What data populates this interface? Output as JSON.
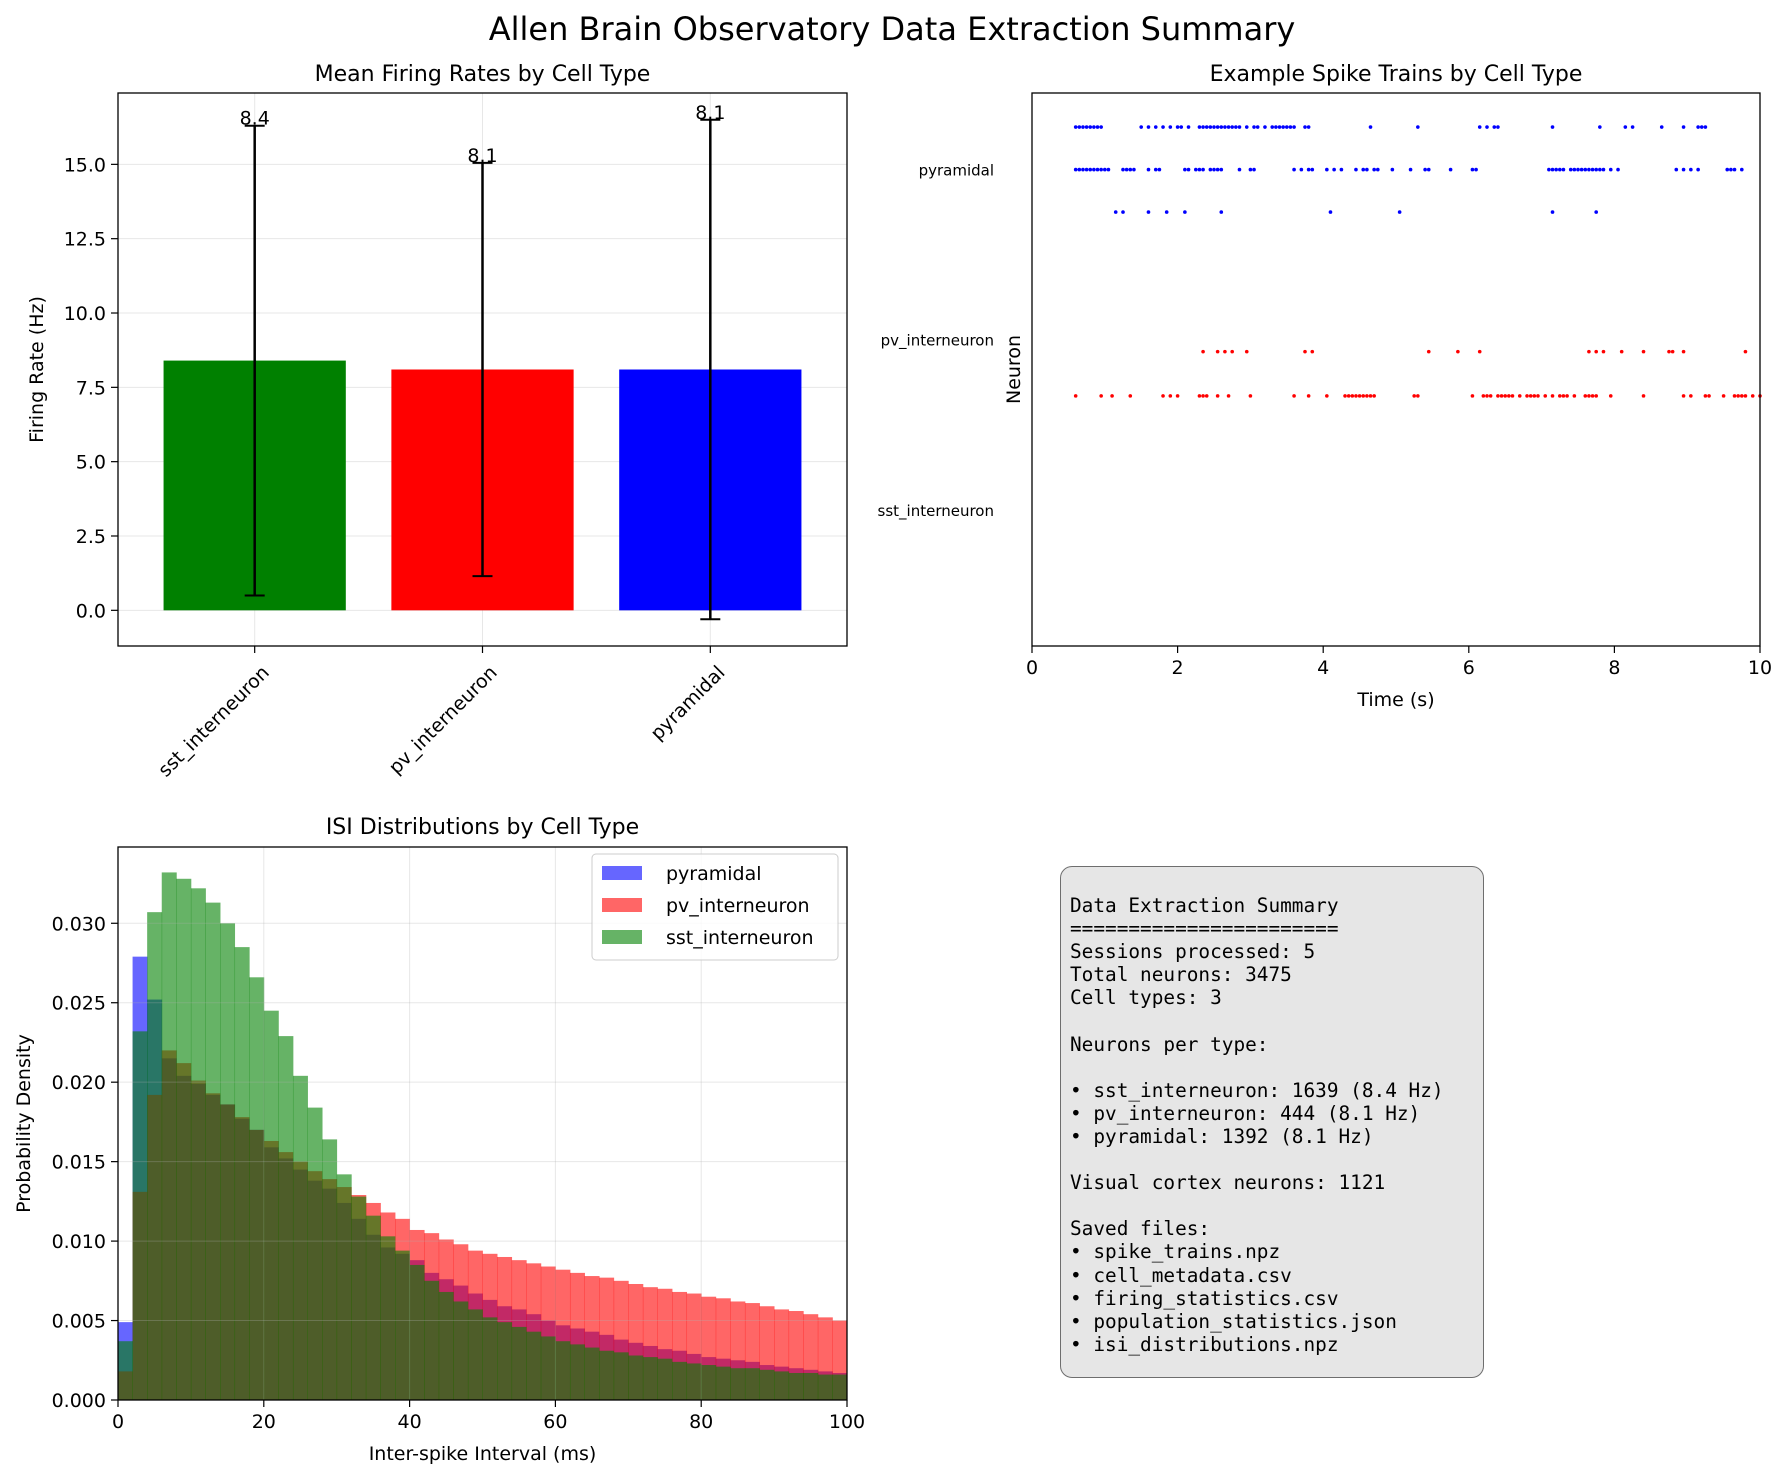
{
  "figure": {
    "title": "Allen Brain Observatory Data Extraction Summary"
  },
  "chart_data": [
    {
      "id": "firing_rates",
      "type": "bar",
      "title": "Mean Firing Rates by Cell Type",
      "xlabel": "",
      "ylabel": "Firing Rate (Hz)",
      "categories": [
        "sst_interneuron",
        "pv_interneuron",
        "pyramidal"
      ],
      "values": [
        8.4,
        8.1,
        8.1
      ],
      "errors": [
        7.9,
        6.95,
        8.4
      ],
      "value_labels": [
        "8.4",
        "8.1",
        "8.1"
      ],
      "colors": [
        "#008000",
        "#ff0000",
        "#0000ff"
      ],
      "ylim": [
        -1.2,
        17.4
      ],
      "yticks": [
        0.0,
        2.5,
        5.0,
        7.5,
        10.0,
        12.5,
        15.0
      ],
      "ytick_labels": [
        "0.0",
        "2.5",
        "5.0",
        "7.5",
        "10.0",
        "12.5",
        "15.0"
      ],
      "grid": true
    },
    {
      "id": "spike_trains",
      "type": "scatter",
      "title": "Example Spike Trains by Cell Type",
      "xlabel": "Time (s)",
      "ylabel": "Neuron",
      "xlim": [
        0,
        10
      ],
      "ylim": [
        -0.8,
        2.45
      ],
      "xticks": [
        0,
        2,
        4,
        6,
        8,
        10
      ],
      "xtick_labels": [
        "0",
        "2",
        "4",
        "6",
        "8",
        "10"
      ],
      "yticks": [
        0,
        1,
        2
      ],
      "ytick_labels": [
        "sst_interneuron",
        "pv_interneuron",
        "pyramidal"
      ],
      "grid": false,
      "trains": [
        {
          "group": "pyramidal",
          "y": 2.25,
          "color": "#0000ff",
          "times": [
            0.6,
            0.65,
            0.7,
            0.75,
            0.8,
            0.85,
            0.9,
            0.95,
            1.5,
            1.6,
            1.7,
            1.8,
            1.9,
            2.0,
            2.05,
            2.15,
            2.3,
            2.35,
            2.4,
            2.45,
            2.5,
            2.55,
            2.6,
            2.65,
            2.7,
            2.75,
            2.8,
            2.85,
            2.95,
            3.05,
            3.1,
            3.2,
            3.3,
            3.35,
            3.4,
            3.45,
            3.5,
            3.55,
            3.6,
            3.75,
            3.8,
            4.65,
            5.3,
            6.15,
            6.25,
            6.35,
            6.4,
            7.15,
            7.8,
            8.15,
            8.25,
            8.65,
            8.95,
            9.15,
            9.2,
            9.25
          ]
        },
        {
          "group": "pyramidal",
          "y": 2.0,
          "color": "#0000ff",
          "times": [
            0.6,
            0.65,
            0.7,
            0.75,
            0.8,
            0.85,
            0.9,
            0.95,
            1.0,
            1.05,
            1.25,
            1.3,
            1.35,
            1.4,
            1.6,
            1.7,
            1.75,
            2.1,
            2.15,
            2.25,
            2.3,
            2.35,
            2.45,
            2.5,
            2.55,
            2.6,
            2.85,
            3.0,
            3.05,
            3.6,
            3.7,
            3.8,
            3.85,
            4.05,
            4.15,
            4.25,
            4.45,
            4.55,
            4.6,
            4.7,
            4.75,
            4.95,
            5.2,
            5.4,
            5.45,
            5.75,
            6.05,
            6.1,
            7.1,
            7.15,
            7.2,
            7.25,
            7.3,
            7.4,
            7.45,
            7.5,
            7.55,
            7.6,
            7.65,
            7.7,
            7.75,
            7.8,
            7.85,
            7.95,
            8.05,
            8.85,
            8.95,
            9.05,
            9.15,
            9.55,
            9.6,
            9.65,
            9.75
          ]
        },
        {
          "group": "pyramidal",
          "y": 1.75,
          "color": "#0000ff",
          "times": [
            1.15,
            1.25,
            1.6,
            1.85,
            2.1,
            2.6,
            4.1,
            5.05,
            7.15,
            7.75
          ]
        },
        {
          "group": "pv_interneuron",
          "y": 0.93,
          "color": "#ff0000",
          "times": [
            2.35,
            2.55,
            2.65,
            2.75,
            2.95,
            3.75,
            3.85,
            5.45,
            5.85,
            6.15,
            7.65,
            7.75,
            7.85,
            8.1,
            8.4,
            8.75,
            8.8,
            8.95,
            9.8
          ]
        },
        {
          "group": "pv_interneuron",
          "y": 0.67,
          "color": "#ff0000",
          "times": [
            0.6,
            0.95,
            1.1,
            1.35,
            1.8,
            1.9,
            2.0,
            2.3,
            2.35,
            2.4,
            2.55,
            2.7,
            3.0,
            3.6,
            3.8,
            4.05,
            4.3,
            4.35,
            4.4,
            4.45,
            4.5,
            4.55,
            4.6,
            4.65,
            4.7,
            5.25,
            5.3,
            6.05,
            6.2,
            6.25,
            6.3,
            6.4,
            6.45,
            6.5,
            6.55,
            6.6,
            6.7,
            6.8,
            6.85,
            6.9,
            6.95,
            7.05,
            7.15,
            7.25,
            7.3,
            7.35,
            7.45,
            7.6,
            7.65,
            7.7,
            7.75,
            7.95,
            8.4,
            8.95,
            9.05,
            9.25,
            9.3,
            9.5,
            9.65,
            9.7,
            9.75,
            9.8,
            9.9,
            10.0
          ]
        }
      ]
    },
    {
      "id": "isi",
      "type": "bar",
      "subtype": "histogram",
      "title": "ISI Distributions by Cell Type",
      "xlabel": "Inter-spike Interval (ms)",
      "ylabel": "Probability Density",
      "xlim": [
        0,
        100
      ],
      "ylim": [
        0,
        0.0348
      ],
      "bin_width": 2,
      "xticks": [
        0,
        20,
        40,
        60,
        80,
        100
      ],
      "xtick_labels": [
        "0",
        "20",
        "40",
        "60",
        "80",
        "100"
      ],
      "yticks": [
        0.0,
        0.005,
        0.01,
        0.015,
        0.02,
        0.025,
        0.03
      ],
      "ytick_labels": [
        "0.000",
        "0.005",
        "0.010",
        "0.015",
        "0.020",
        "0.025",
        "0.030"
      ],
      "legend_position": "upper-right",
      "grid": true,
      "series": [
        {
          "name": "pyramidal",
          "color": "#0000ff",
          "values": [
            0.0049,
            0.0279,
            0.0252,
            0.0215,
            0.0204,
            0.0199,
            0.0192,
            0.0186,
            0.0177,
            0.017,
            0.0159,
            0.0152,
            0.0145,
            0.0138,
            0.0133,
            0.0124,
            0.0114,
            0.0104,
            0.0096,
            0.0092,
            0.0088,
            0.008,
            0.0076,
            0.0072,
            0.0067,
            0.0063,
            0.0059,
            0.0057,
            0.0054,
            0.005,
            0.0047,
            0.0045,
            0.0043,
            0.0041,
            0.0038,
            0.0036,
            0.0034,
            0.0032,
            0.0031,
            0.0029,
            0.0027,
            0.0026,
            0.0025,
            0.0024,
            0.0022,
            0.0021,
            0.002,
            0.0019,
            0.0018,
            0.0017
          ]
        },
        {
          "name": "pv_interneuron",
          "color": "#ff0000",
          "values": [
            0.0018,
            0.0131,
            0.0192,
            0.022,
            0.0212,
            0.0201,
            0.0193,
            0.0186,
            0.0178,
            0.017,
            0.0163,
            0.0156,
            0.015,
            0.0144,
            0.0139,
            0.0134,
            0.0129,
            0.0124,
            0.0118,
            0.0114,
            0.0107,
            0.0105,
            0.0101,
            0.0098,
            0.0094,
            0.0092,
            0.009,
            0.0088,
            0.0086,
            0.0084,
            0.0082,
            0.008,
            0.0078,
            0.0077,
            0.0075,
            0.0073,
            0.0071,
            0.007,
            0.0068,
            0.0067,
            0.0065,
            0.0064,
            0.0062,
            0.0061,
            0.0059,
            0.0057,
            0.0056,
            0.0054,
            0.0052,
            0.005
          ]
        },
        {
          "name": "sst_interneuron",
          "color": "#008000",
          "values": [
            0.0037,
            0.0232,
            0.0307,
            0.0332,
            0.0328,
            0.0322,
            0.0313,
            0.03,
            0.0285,
            0.0266,
            0.0245,
            0.0229,
            0.0204,
            0.0184,
            0.0164,
            0.0142,
            0.0128,
            0.0116,
            0.0103,
            0.0094,
            0.0085,
            0.0075,
            0.0068,
            0.0062,
            0.0057,
            0.0052,
            0.0049,
            0.0046,
            0.0043,
            0.004,
            0.0037,
            0.0035,
            0.0033,
            0.0031,
            0.003,
            0.0028,
            0.0027,
            0.0026,
            0.0024,
            0.0023,
            0.0022,
            0.0021,
            0.002,
            0.002,
            0.0019,
            0.0018,
            0.0017,
            0.0017,
            0.0016,
            0.0016
          ]
        }
      ]
    }
  ],
  "summary": {
    "lines": [
      "Data Extraction Summary",
      "=======================",
      "Sessions processed: 5",
      "Total neurons: 3475",
      "Cell types: 3",
      "",
      "Neurons per type:",
      "",
      "• sst_interneuron: 1639 (8.4 Hz)",
      "• pv_interneuron: 444 (8.1 Hz)",
      "• pyramidal: 1392 (8.1 Hz)",
      "",
      "Visual cortex neurons: 1121",
      "",
      "Saved files:",
      "• spike_trains.npz",
      "• cell_metadata.csv",
      "• firing_statistics.csv",
      "• population_statistics.json",
      "• isi_distributions.npz"
    ]
  }
}
